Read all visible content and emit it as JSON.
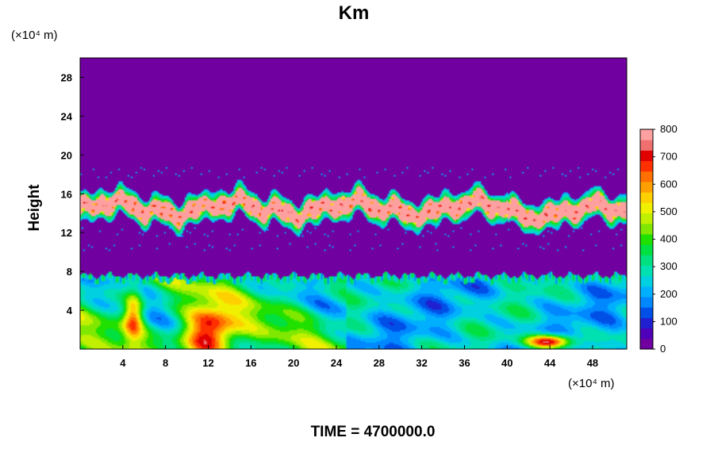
{
  "chart_data": {
    "type": "heatmap",
    "title": "Km",
    "ylabel": "Height",
    "y_unit": "(×10⁴ m)",
    "x_unit": "(×10⁴ m)",
    "footer": "TIME = 4700000.0",
    "xlim": [
      0,
      51.2
    ],
    "ylim": [
      0,
      30
    ],
    "xticks": [
      "4",
      "8",
      "12",
      "16",
      "20",
      "24",
      "28",
      "32",
      "36",
      "40",
      "44",
      "48"
    ],
    "yticks": [
      "4",
      "8",
      "12",
      "16",
      "20",
      "24",
      "28"
    ],
    "colorbar": {
      "range": [
        0,
        800
      ],
      "ticks": [
        "0",
        "100",
        "200",
        "300",
        "400",
        "500",
        "600",
        "700",
        "800"
      ],
      "colors": [
        "#7000a0",
        "#5000b8",
        "#2020d0",
        "#0050e8",
        "#0088ff",
        "#00b0ff",
        "#00d0e0",
        "#00e0b0",
        "#00e080",
        "#00e040",
        "#20e000",
        "#80e800",
        "#c0f000",
        "#f0f000",
        "#ffd000",
        "#ffa000",
        "#ff7000",
        "#ff3000",
        "#e00000",
        "#f07070",
        "#ffa0a0"
      ]
    },
    "fields": {
      "background_value": 0,
      "upper_band": {
        "y_center": 14.5,
        "half_width": 1.5,
        "typical_value": 800
      },
      "lower_layer": {
        "top": 7.6,
        "typical_value_left": 400,
        "typical_value_right": 250,
        "peak_value": 800
      }
    }
  },
  "colors": {
    "background": "#7000a0",
    "frame": "#000000"
  }
}
